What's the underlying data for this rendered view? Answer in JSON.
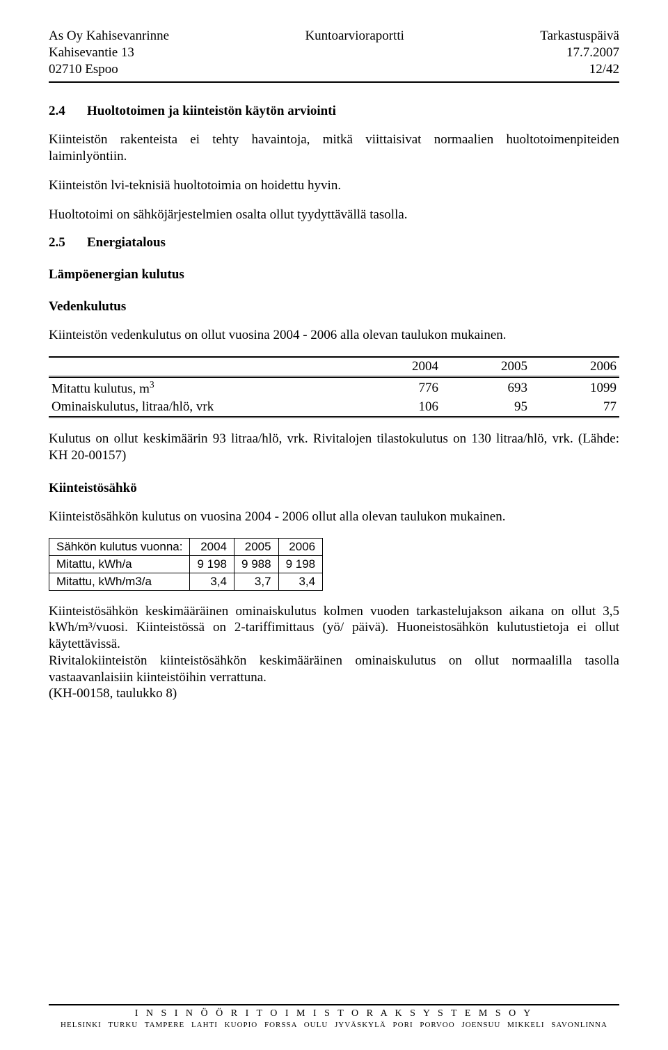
{
  "header": {
    "left1": "As Oy Kahisevanrinne",
    "left2": "Kahisevantie 13",
    "left3": "02710 Espoo",
    "center": "Kuntoarvioraportti",
    "right1": "Tarkastuspäivä",
    "right2": "17.7.2007",
    "right3": "12/42"
  },
  "s24": {
    "num": "2.4",
    "title": "Huoltotoimen ja kiinteistön käytön arviointi",
    "p1": "Kiinteistön rakenteista ei tehty havaintoja, mitkä viittaisivat normaalien huoltotoimenpiteiden laiminlyöntiin.",
    "p2": "Kiinteistön lvi-teknisiä huoltotoimia on hoidettu hyvin.",
    "p3": "Huoltotoimi on sähköjärjestelmien osalta ollut tyydyttävällä tasolla."
  },
  "s25": {
    "num": "2.5",
    "title": "Energiatalous",
    "h_lampo": "Lämpöenergian kulutus",
    "h_vesi": "Vedenkulutus",
    "p_vesi_intro": "Kiinteistön vedenkulutus on ollut vuosina 2004 - 2006 alla olevan taulukon mukainen.",
    "table1": {
      "years": [
        "2004",
        "2005",
        "2006"
      ],
      "row1_label": "Mitattu kulutus, m",
      "row1_sup": "3",
      "row1": [
        "776",
        "693",
        "1099"
      ],
      "row2_label": "Ominaiskulutus, litraa/hlö, vrk",
      "row2": [
        "106",
        "95",
        "77"
      ]
    },
    "p_vesi_out": "Kulutus on ollut keskimäärin 93 litraa/hlö, vrk. Rivitalojen tilastokulutus on 130 litraa/hlö, vrk. (Lähde: KH 20-00157)",
    "h_sahko": "Kiinteistösähkö",
    "p_sahko_intro": "Kiinteistösähkön kulutus on vuosina 2004 - 2006 ollut alla olevan taulukon mukainen.",
    "table2": {
      "header": [
        "Sähkön kulutus vuonna:",
        "2004",
        "2005",
        "2006"
      ],
      "row1": [
        "Mitattu, kWh/a",
        "9 198",
        "9 988",
        "9 198"
      ],
      "row2": [
        "Mitattu, kWh/m3/a",
        "3,4",
        "3,7",
        "3,4"
      ]
    },
    "p_sahko_1": "Kiinteistösähkön keskimääräinen ominaiskulutus kolmen vuoden tarkastelujakson aikana on ollut 3,5 kWh/m³/vuosi. Kiinteistössä on 2-tariffimittaus (yö/ päivä). Huoneistosähkön kulutustietoja ei ollut käytettävissä.",
    "p_sahko_2": "Rivitalokiinteistön kiinteistösähkön keskimääräinen ominaiskulutus on ollut normaalilla tasolla vastaavanlaisiin kiinteistöihin verrattuna.",
    "p_sahko_3": "(KH-00158, taulukko 8)"
  },
  "footer": {
    "company": "I N S I N Ö Ö R I T O I M I S T O   R A K S Y S T E M S   O Y",
    "cities": "HELSINKI  TURKU  TAMPERE  LAHTI  KUOPIO  FORSSA  OULU  JYVÄSKYLÄ  PORI  PORVOO  JOENSUU  MIKKELI  SAVONLINNA"
  }
}
